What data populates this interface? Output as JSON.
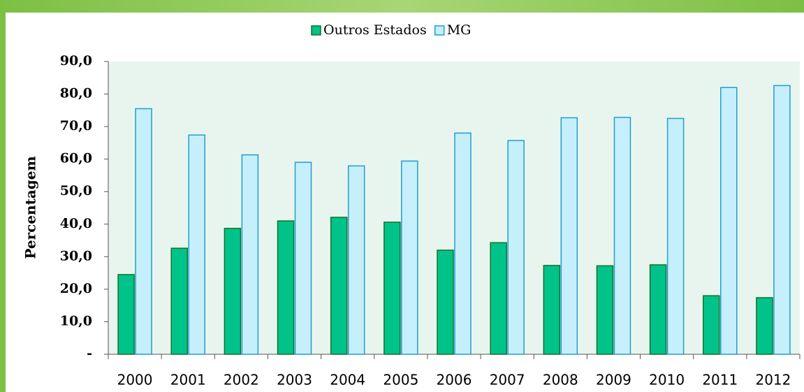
{
  "chart_data": {
    "type": "bar",
    "y_label": "Percentagem",
    "categories": [
      "2000",
      "2001",
      "2002",
      "2003",
      "2004",
      "2005",
      "2006",
      "2007",
      "2008",
      "2009",
      "2010",
      "2011",
      "2012"
    ],
    "series": [
      {
        "name": "Outros Estados",
        "color": "#00c389",
        "values": [
          24.5,
          32.6,
          38.7,
          41.0,
          42.1,
          40.6,
          32.0,
          34.3,
          27.3,
          27.2,
          27.5,
          18.0,
          17.4
        ]
      },
      {
        "name": "MG",
        "color": "#c6effc",
        "values": [
          75.5,
          67.4,
          61.3,
          59.0,
          57.9,
          59.4,
          68.0,
          65.7,
          72.7,
          72.8,
          72.5,
          82.0,
          82.6
        ]
      }
    ],
    "ylim": [
      0,
      90
    ],
    "yticks": [
      {
        "value": 0,
        "label": "-"
      },
      {
        "value": 10,
        "label": "10,0"
      },
      {
        "value": 20,
        "label": "20,0"
      },
      {
        "value": 30,
        "label": "30,0"
      },
      {
        "value": 40,
        "label": "40,0"
      },
      {
        "value": 50,
        "label": "50,0"
      },
      {
        "value": 60,
        "label": "60,0"
      },
      {
        "value": 70,
        "label": "70,0"
      },
      {
        "value": 80,
        "label": "80,0"
      },
      {
        "value": 90,
        "label": "90,0"
      }
    ],
    "grid": false,
    "legend": "top"
  }
}
